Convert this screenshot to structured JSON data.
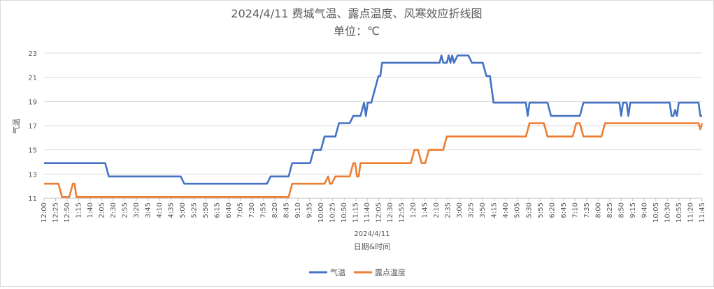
{
  "chart_data": {
    "type": "line",
    "title": "2024/4/11 费城气温、露点温度、风寒效应折线图",
    "subtitle": "单位：℃",
    "xlabel": "日期&时间",
    "x_group_label": "2024/4/11",
    "ylabel": "气温",
    "ylim": [
      11,
      23
    ],
    "yticks": [
      11,
      13,
      15,
      17,
      19,
      21,
      23
    ],
    "grid": true,
    "legend_position": "bottom",
    "x_tick_labels": [
      "12:00",
      "12:25",
      "12:50",
      "1:15",
      "1:40",
      "2:05",
      "2:30",
      "2:55",
      "3:20",
      "3:45",
      "4:10",
      "4:35",
      "5:00",
      "5:25",
      "5:50",
      "6:15",
      "6:40",
      "7:05",
      "7:30",
      "7:55",
      "8:20",
      "8:45",
      "9:10",
      "9:35",
      "10:00",
      "10:25",
      "10:50",
      "11:15",
      "11:40",
      "12:05",
      "12:30",
      "12:55",
      "1:20",
      "1:45",
      "2:10",
      "2:35",
      "3:00",
      "3:25",
      "3:50",
      "4:15",
      "4:40",
      "5:05",
      "5:30",
      "5:55",
      "6:20",
      "6:45",
      "7:10",
      "7:35",
      "8:00",
      "8:25",
      "8:50",
      "9:15",
      "9:40",
      "10:05",
      "10:30",
      "10:55",
      "11:20",
      "11:45"
    ],
    "series": [
      {
        "name": "气温",
        "color": "#4472c4",
        "points": [
          [
            0,
            13.9
          ],
          [
            17,
            13.9
          ],
          [
            18,
            12.8
          ],
          [
            38,
            12.8
          ],
          [
            39,
            12.2
          ],
          [
            62,
            12.2
          ],
          [
            63,
            12.8
          ],
          [
            68,
            12.8
          ],
          [
            69,
            13.9
          ],
          [
            74,
            13.9
          ],
          [
            75,
            15.0
          ],
          [
            77,
            15.0
          ],
          [
            78,
            16.1
          ],
          [
            81,
            16.1
          ],
          [
            82,
            17.2
          ],
          [
            85,
            17.2
          ],
          [
            86,
            17.8
          ],
          [
            88,
            17.8
          ],
          [
            89,
            18.9
          ],
          [
            89.5,
            17.8
          ],
          [
            90,
            18.9
          ],
          [
            91,
            18.9
          ],
          [
            92,
            20.0
          ],
          [
            93,
            21.1
          ],
          [
            93.5,
            21.1
          ],
          [
            94,
            22.2
          ],
          [
            110,
            22.2
          ],
          [
            110.5,
            22.8
          ],
          [
            111,
            22.2
          ],
          [
            112,
            22.2
          ],
          [
            112.5,
            22.8
          ],
          [
            113,
            22.2
          ],
          [
            113.5,
            22.8
          ],
          [
            114,
            22.2
          ],
          [
            115,
            22.8
          ],
          [
            118,
            22.8
          ],
          [
            119,
            22.2
          ],
          [
            122,
            22.2
          ],
          [
            123,
            21.1
          ],
          [
            124,
            21.1
          ],
          [
            125,
            18.9
          ],
          [
            134,
            18.9
          ],
          [
            134.5,
            17.8
          ],
          [
            135,
            18.9
          ],
          [
            140,
            18.9
          ],
          [
            141,
            17.8
          ],
          [
            149,
            17.8
          ],
          [
            150,
            18.9
          ],
          [
            160,
            18.9
          ],
          [
            160.5,
            17.8
          ],
          [
            161,
            18.9
          ],
          [
            162,
            18.9
          ],
          [
            162.5,
            17.8
          ],
          [
            163,
            18.9
          ],
          [
            174,
            18.9
          ],
          [
            174.5,
            17.8
          ],
          [
            175,
            17.8
          ],
          [
            175.5,
            18.3
          ],
          [
            176,
            17.8
          ],
          [
            176.5,
            18.9
          ],
          [
            182,
            18.9
          ],
          [
            182.5,
            17.8
          ],
          [
            183,
            17.8
          ]
        ]
      },
      {
        "name": "露点温度",
        "color": "#ed7d31",
        "points": [
          [
            0,
            12.2
          ],
          [
            4,
            12.2
          ],
          [
            5,
            11.1
          ],
          [
            7,
            11.1
          ],
          [
            8,
            12.2
          ],
          [
            8.5,
            12.2
          ],
          [
            9,
            11.1
          ],
          [
            68,
            11.1
          ],
          [
            69,
            12.2
          ],
          [
            78,
            12.2
          ],
          [
            79,
            12.8
          ],
          [
            79.5,
            12.2
          ],
          [
            80,
            12.2
          ],
          [
            81,
            12.8
          ],
          [
            85,
            12.8
          ],
          [
            86,
            13.9
          ],
          [
            86.5,
            13.9
          ],
          [
            87,
            12.8
          ],
          [
            87.5,
            12.8
          ],
          [
            88,
            13.9
          ],
          [
            102,
            13.9
          ],
          [
            103,
            15.0
          ],
          [
            104,
            15.0
          ],
          [
            105,
            13.9
          ],
          [
            106,
            13.9
          ],
          [
            107,
            15.0
          ],
          [
            111,
            15.0
          ],
          [
            112,
            16.1
          ],
          [
            134,
            16.1
          ],
          [
            135,
            17.2
          ],
          [
            139,
            17.2
          ],
          [
            140,
            16.1
          ],
          [
            147,
            16.1
          ],
          [
            148,
            17.2
          ],
          [
            149,
            17.2
          ],
          [
            150,
            16.1
          ],
          [
            155,
            16.1
          ],
          [
            156,
            17.2
          ],
          [
            182,
            17.2
          ],
          [
            182.5,
            16.7
          ],
          [
            183,
            17.2
          ]
        ]
      }
    ]
  },
  "legend": {
    "items": [
      {
        "label": "气温",
        "color": "#4472c4"
      },
      {
        "label": "露点温度",
        "color": "#ed7d31"
      }
    ]
  }
}
